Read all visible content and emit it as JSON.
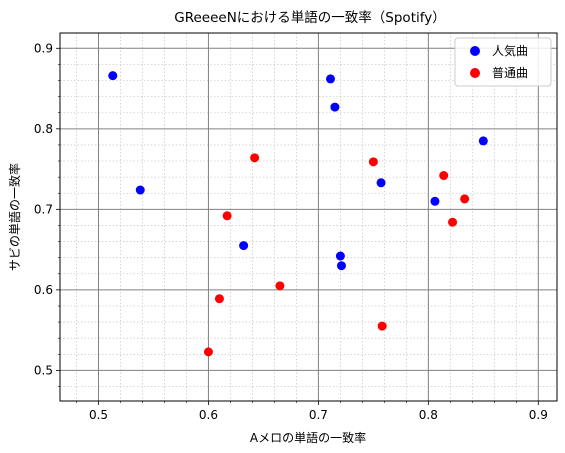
{
  "chart_data": {
    "type": "scatter",
    "title": "GReeeeNにおける単語の一致率（Spotify）",
    "xlabel": "Aメロの単語の一致率",
    "ylabel": "サビの単語の一致率",
    "xlim": [
      0.465,
      0.917
    ],
    "ylim": [
      0.462,
      0.919
    ],
    "xticks": [
      0.5,
      0.6,
      0.7,
      0.8,
      0.9
    ],
    "yticks": [
      0.5,
      0.6,
      0.7,
      0.8,
      0.9
    ],
    "xtick_labels": [
      "0.5",
      "0.6",
      "0.7",
      "0.8",
      "0.9"
    ],
    "ytick_labels": [
      "0.5",
      "0.6",
      "0.7",
      "0.8",
      "0.9"
    ],
    "grid": true,
    "minor_grid": true,
    "legend_position": "top-right",
    "series": [
      {
        "name": "人気曲",
        "color": "#0000ff",
        "points": [
          {
            "x": 0.513,
            "y": 0.866
          },
          {
            "x": 0.538,
            "y": 0.724
          },
          {
            "x": 0.632,
            "y": 0.655
          },
          {
            "x": 0.711,
            "y": 0.862
          },
          {
            "x": 0.715,
            "y": 0.827
          },
          {
            "x": 0.72,
            "y": 0.642
          },
          {
            "x": 0.721,
            "y": 0.63
          },
          {
            "x": 0.757,
            "y": 0.733
          },
          {
            "x": 0.806,
            "y": 0.71
          },
          {
            "x": 0.85,
            "y": 0.785
          }
        ]
      },
      {
        "name": "普通曲",
        "color": "#ff0000",
        "points": [
          {
            "x": 0.6,
            "y": 0.523
          },
          {
            "x": 0.61,
            "y": 0.589
          },
          {
            "x": 0.617,
            "y": 0.692
          },
          {
            "x": 0.642,
            "y": 0.764
          },
          {
            "x": 0.665,
            "y": 0.605
          },
          {
            "x": 0.75,
            "y": 0.759
          },
          {
            "x": 0.758,
            "y": 0.555
          },
          {
            "x": 0.814,
            "y": 0.742
          },
          {
            "x": 0.822,
            "y": 0.684
          },
          {
            "x": 0.833,
            "y": 0.713
          }
        ]
      }
    ]
  }
}
